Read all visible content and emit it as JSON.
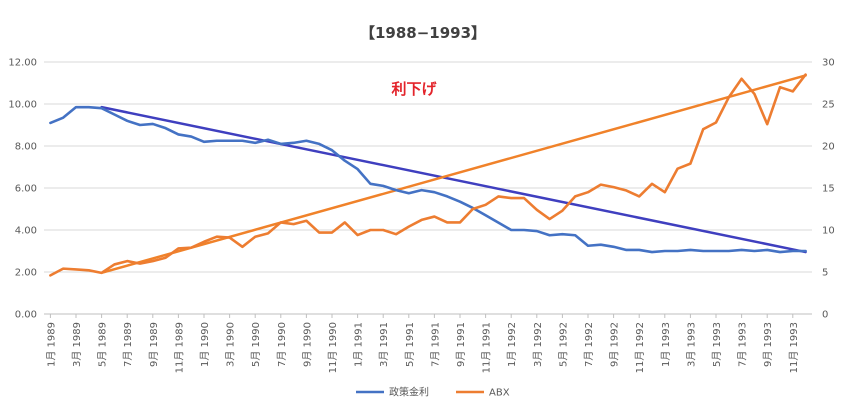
{
  "chart_data": {
    "type": "line",
    "title": "【1988−1993】",
    "annotation": "利下げ",
    "x": [
      "1月 1989",
      "2月 1989",
      "3月 1989",
      "4月 1989",
      "5月 1989",
      "6月 1989",
      "7月 1989",
      "8月 1989",
      "9月 1989",
      "10月 1989",
      "11月 1989",
      "12月 1989",
      "1月 1990",
      "2月 1990",
      "3月 1990",
      "4月 1990",
      "5月 1990",
      "6月 1990",
      "7月 1990",
      "8月 1990",
      "9月 1990",
      "10月 1990",
      "11月 1990",
      "12月 1990",
      "1月 1991",
      "2月 1991",
      "3月 1991",
      "4月 1991",
      "5月 1991",
      "6月 1991",
      "7月 1991",
      "8月 1991",
      "9月 1991",
      "10月 1991",
      "11月 1991",
      "12月 1991",
      "1月 1992",
      "2月 1992",
      "3月 1992",
      "4月 1992",
      "5月 1992",
      "6月 1992",
      "7月 1992",
      "8月 1992",
      "9月 1992",
      "10月 1992",
      "11月 1992",
      "12月 1992",
      "1月 1993",
      "2月 1993",
      "3月 1993",
      "4月 1993",
      "5月 1993",
      "6月 1993",
      "7月 1993",
      "8月 1993",
      "9月 1993",
      "10月 1993",
      "11月 1993",
      "12月 1993"
    ],
    "x_tick_labels": [
      "1月 1989",
      "3月 1989",
      "5月 1989",
      "7月 1989",
      "9月 1989",
      "11月 1989",
      "1月 1990",
      "3月 1990",
      "5月 1990",
      "7月 1990",
      "9月 1990",
      "11月 1990",
      "1月 1991",
      "3月 1991",
      "5月 1991",
      "7月 1991",
      "9月 1991",
      "11月 1991",
      "1月 1992",
      "3月 1992",
      "5月 1992",
      "7月 1992",
      "9月 1992",
      "11月 1992",
      "1月 1993",
      "3月 1993",
      "5月 1993",
      "7月 1993",
      "9月 1993",
      "11月 1993"
    ],
    "y_left": {
      "lim": [
        0,
        12
      ],
      "ticks": [
        "0.00",
        "2.00",
        "4.00",
        "6.00",
        "8.00",
        "10.00",
        "12.00"
      ]
    },
    "y_right": {
      "lim": [
        0,
        30
      ],
      "ticks": [
        "0",
        "5",
        "10",
        "15",
        "20",
        "25",
        "30"
      ]
    },
    "series": [
      {
        "name": "政策金利",
        "axis": "left",
        "color": "#4472c4",
        "values": [
          9.1,
          9.35,
          9.85,
          9.85,
          9.8,
          9.5,
          9.2,
          9.0,
          9.05,
          8.85,
          8.55,
          8.45,
          8.2,
          8.25,
          8.25,
          8.25,
          8.15,
          8.3,
          8.1,
          8.15,
          8.25,
          8.1,
          7.8,
          7.3,
          6.9,
          6.2,
          6.1,
          5.9,
          5.75,
          5.9,
          5.8,
          5.6,
          5.35,
          5.05,
          4.7,
          4.35,
          4.0,
          4.0,
          3.95,
          3.75,
          3.8,
          3.75,
          3.25,
          3.3,
          3.2,
          3.05,
          3.05,
          2.95,
          3.0,
          3.0,
          3.05,
          3.0,
          3.0,
          3.0,
          3.05,
          3.0,
          3.05,
          2.95,
          3.0,
          3.0
        ]
      },
      {
        "name": "ABX",
        "axis": "right",
        "color": "#ed7d31",
        "values": [
          4.6,
          5.4,
          5.3,
          5.2,
          4.9,
          5.9,
          6.3,
          6.0,
          6.3,
          6.7,
          7.8,
          7.9,
          8.6,
          9.2,
          9.1,
          8.0,
          9.2,
          9.6,
          10.9,
          10.7,
          11.1,
          9.7,
          9.7,
          10.9,
          9.4,
          10.0,
          10.0,
          9.5,
          10.4,
          11.2,
          11.6,
          10.9,
          10.9,
          12.5,
          13.0,
          14.0,
          13.8,
          13.8,
          12.4,
          11.3,
          12.3,
          14.0,
          14.5,
          15.4,
          15.1,
          14.7,
          14.0,
          15.5,
          14.5,
          17.3,
          17.9,
          22.0,
          22.8,
          25.8,
          28.0,
          26.2,
          22.6,
          27.0,
          26.5,
          28.5
        ]
      }
    ],
    "trendlines": [
      {
        "series": "政策金利",
        "axis": "left",
        "color": "#3f3fbf",
        "from": {
          "x": "5月 1989",
          "y": 9.85
        },
        "to": {
          "x": "12月 1993",
          "y": 2.95
        }
      },
      {
        "series": "ABX",
        "axis": "right",
        "color": "#f0822a",
        "from": {
          "x": "5月 1989",
          "y": 4.9
        },
        "to": {
          "x": "12月 1993",
          "y": 28.4
        }
      }
    ],
    "legend_position": "bottom-center",
    "grid": true
  }
}
